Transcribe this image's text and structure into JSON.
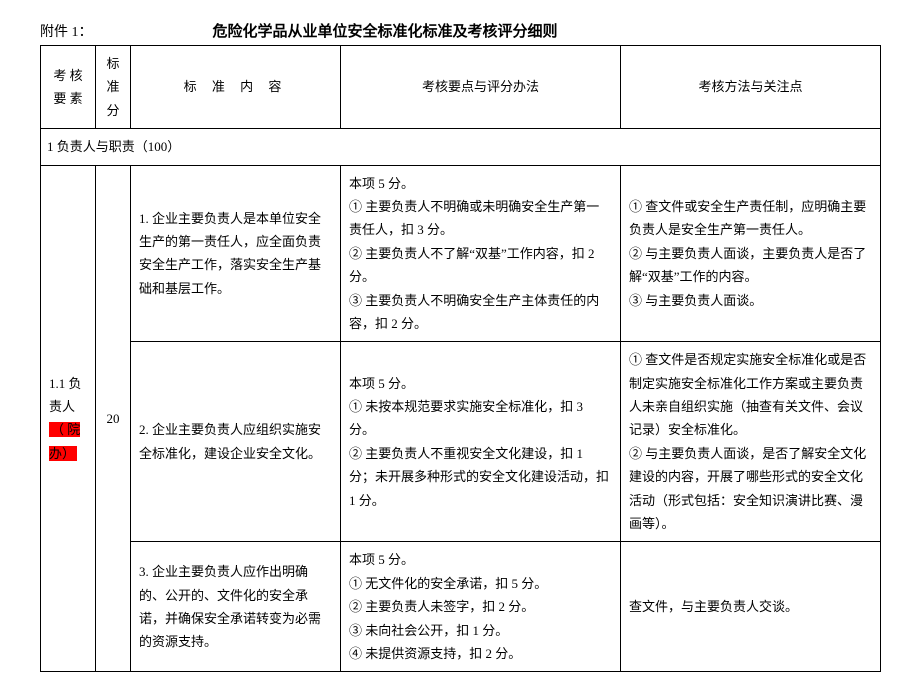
{
  "header": {
    "attachment": "附件 1：",
    "title": "危险化学品从业单位安全标准化标准及考核评分细则"
  },
  "columns": {
    "element": "考 核 要 素",
    "score": "标准分",
    "content": "标 准 内 容",
    "points": "考核要点与评分办法",
    "methods": "考核方法与关注点"
  },
  "section": {
    "title": "1 负责人与职责（100）"
  },
  "group": {
    "label_line1": "1.1 负责人",
    "label_highlight": "（ 院办）",
    "score": "20"
  },
  "rows": [
    {
      "content": "1. 企业主要负责人是本单位安全生产的第一责任人，应全面负责安全生产工作，落实安全生产基础和基层工作。",
      "points": "本项 5 分。\n① 主要负责人不明确或未明确安全生产第一责任人，扣 3 分。\n② 主要负责人不了解“双基”工作内容，扣 2 分。\n③ 主要负责人不明确安全生产主体责任的内容，扣 2 分。",
      "methods": "① 查文件或安全生产责任制，应明确主要负责人是安全生产第一责任人。\n② 与主要负责人面谈，主要负责人是否了解“双基”工作的内容。\n③ 与主要负责人面谈。"
    },
    {
      "content": "2. 企业主要负责人应组织实施安全标准化，建设企业安全文化。",
      "points": "本项 5 分。\n① 未按本规范要求实施安全标准化，扣 3 分。\n② 主要负责人不重视安全文化建设，扣 1 分；未开展多种形式的安全文化建设活动，扣 1 分。",
      "methods": "① 查文件是否规定实施安全标准化或是否制定实施安全标准化工作方案或主要负责人未亲自组织实施（抽查有关文件、会议记录）安全标准化。\n② 与主要负责人面谈，是否了解安全文化建设的内容，开展了哪些形式的安全文化活动（形式包括：安全知识演讲比赛、漫画等）。"
    },
    {
      "content": "3. 企业主要负责人应作出明确的、公开的、文件化的安全承诺，并确保安全承诺转变为必需的资源支持。",
      "points": "本项 5 分。\n① 无文件化的安全承诺，扣 5 分。\n② 主要负责人未签字，扣 2 分。\n③ 未向社会公开，扣 1 分。\n④ 未提供资源支持，扣 2 分。",
      "methods": "查文件，与主要负责人交谈。"
    }
  ]
}
